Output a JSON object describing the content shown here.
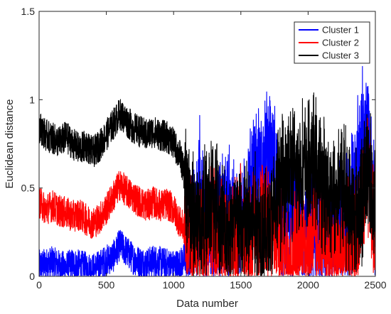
{
  "chart_data": {
    "type": "line",
    "xlabel": "Data number",
    "ylabel": "Euclidean distance",
    "xlim": [
      0,
      2500
    ],
    "ylim": [
      0,
      1.5
    ],
    "xticks": [
      0,
      500,
      1000,
      1500,
      2000,
      2500
    ],
    "yticks": [
      0,
      0.5,
      1,
      1.5
    ],
    "xtick_labels": [
      "0",
      "500",
      "1000",
      "1500",
      "2000",
      "2500"
    ],
    "ytick_labels": [
      "0",
      "0.5",
      "1",
      "1.5"
    ],
    "grid": false,
    "legend_position": "top-right",
    "series": [
      {
        "name": "Cluster 1",
        "color": "#0000ff",
        "x": [
          0,
          50,
          100,
          150,
          200,
          250,
          300,
          350,
          400,
          450,
          500,
          550,
          600,
          650,
          700,
          750,
          800,
          850,
          900,
          950,
          1000,
          1050,
          1100,
          1150,
          1200,
          1250,
          1300,
          1350,
          1400,
          1450,
          1500,
          1550,
          1600,
          1650,
          1700,
          1750,
          1800,
          1850,
          1900,
          1950,
          2000,
          2050,
          2100,
          2150,
          2200,
          2250,
          2300,
          2350,
          2400,
          2450,
          2500
        ],
        "values": [
          0.06,
          0.07,
          0.08,
          0.06,
          0.05,
          0.07,
          0.06,
          0.05,
          0.04,
          0.06,
          0.09,
          0.11,
          0.18,
          0.14,
          0.1,
          0.08,
          0.07,
          0.09,
          0.08,
          0.07,
          0.06,
          0.07,
          0.12,
          0.3,
          0.5,
          0.25,
          0.2,
          0.3,
          0.42,
          0.28,
          0.22,
          0.48,
          0.52,
          0.6,
          0.72,
          0.58,
          0.3,
          0.28,
          0.35,
          0.32,
          0.24,
          0.3,
          0.2,
          0.18,
          0.22,
          0.26,
          0.3,
          0.55,
          0.8,
          0.85,
          0.2
        ]
      },
      {
        "name": "Cluster 2",
        "color": "#ff0000",
        "x": [
          0,
          50,
          100,
          150,
          200,
          250,
          300,
          350,
          400,
          450,
          500,
          550,
          600,
          650,
          700,
          750,
          800,
          850,
          900,
          950,
          1000,
          1050,
          1100,
          1150,
          1200,
          1250,
          1300,
          1350,
          1400,
          1450,
          1500,
          1550,
          1600,
          1650,
          1700,
          1750,
          1800,
          1850,
          1900,
          1950,
          2000,
          2050,
          2100,
          2150,
          2200,
          2250,
          2300,
          2350,
          2400,
          2450,
          2500
        ],
        "values": [
          0.42,
          0.38,
          0.4,
          0.37,
          0.36,
          0.34,
          0.35,
          0.32,
          0.3,
          0.33,
          0.38,
          0.45,
          0.52,
          0.48,
          0.45,
          0.42,
          0.4,
          0.42,
          0.4,
          0.41,
          0.38,
          0.3,
          0.25,
          0.2,
          0.18,
          0.22,
          0.28,
          0.2,
          0.15,
          0.18,
          0.22,
          0.2,
          0.25,
          0.3,
          0.38,
          0.25,
          0.18,
          0.12,
          0.15,
          0.2,
          0.18,
          0.22,
          0.2,
          0.15,
          0.12,
          0.1,
          0.12,
          0.2,
          0.35,
          0.55,
          0.15
        ]
      },
      {
        "name": "Cluster 3",
        "color": "#000000",
        "x": [
          0,
          50,
          100,
          150,
          200,
          250,
          300,
          350,
          400,
          450,
          500,
          550,
          600,
          650,
          700,
          750,
          800,
          850,
          900,
          950,
          1000,
          1050,
          1100,
          1150,
          1200,
          1250,
          1300,
          1350,
          1400,
          1450,
          1500,
          1550,
          1600,
          1650,
          1700,
          1750,
          1800,
          1850,
          1900,
          1950,
          2000,
          2050,
          2100,
          2150,
          2200,
          2250,
          2300,
          2350,
          2400,
          2450,
          2500
        ],
        "values": [
          0.85,
          0.8,
          0.78,
          0.76,
          0.79,
          0.75,
          0.72,
          0.74,
          0.7,
          0.74,
          0.8,
          0.86,
          0.92,
          0.88,
          0.84,
          0.82,
          0.8,
          0.82,
          0.8,
          0.79,
          0.75,
          0.68,
          0.5,
          0.35,
          0.3,
          0.38,
          0.45,
          0.3,
          0.25,
          0.3,
          0.28,
          0.3,
          0.32,
          0.28,
          0.25,
          0.35,
          0.55,
          0.62,
          0.58,
          0.62,
          0.6,
          0.65,
          0.52,
          0.5,
          0.45,
          0.55,
          0.4,
          0.35,
          0.45,
          0.65,
          0.3
        ]
      }
    ]
  }
}
